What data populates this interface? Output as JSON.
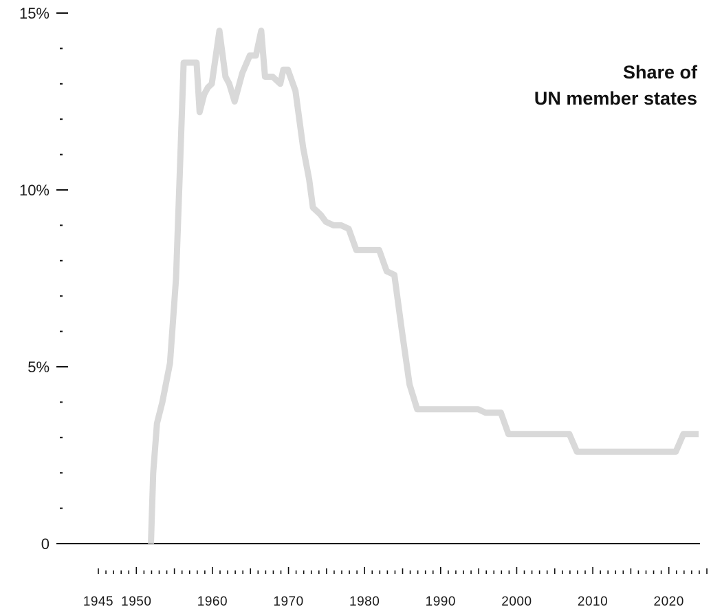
{
  "chart_data": {
    "type": "line",
    "title_lines": [
      "Share of",
      "UN member states"
    ],
    "xlabel": "",
    "ylabel": "",
    "xlim": [
      1945,
      2025
    ],
    "ylim": [
      0,
      15
    ],
    "y_ticks": [
      {
        "value": 0,
        "label": "0"
      },
      {
        "value": 5,
        "label": "5%"
      },
      {
        "value": 10,
        "label": "10%"
      },
      {
        "value": 15,
        "label": "15%"
      }
    ],
    "y_minor_step": 1,
    "x_ticks": [
      {
        "value": 1945,
        "label": "1945"
      },
      {
        "value": 1950,
        "label": "1950"
      },
      {
        "value": 1960,
        "label": "1960"
      },
      {
        "value": 1970,
        "label": "1970"
      },
      {
        "value": 1980,
        "label": "1980"
      },
      {
        "value": 1990,
        "label": "1990"
      },
      {
        "value": 2000,
        "label": "2000"
      },
      {
        "value": 2010,
        "label": "2010"
      },
      {
        "value": 2020,
        "label": "2020"
      }
    ],
    "x_minor_step": 1,
    "series": [
      {
        "color": "#d9d9d9",
        "x": [
          1953,
          1953.3,
          1953.8,
          1954.5,
          1955.5,
          1956.3,
          1956.8,
          1957.3,
          1957.8,
          1958.1,
          1959,
          1959.4,
          1960,
          1960.5,
          1961,
          1962,
          1962.8,
          1963.3,
          1964,
          1965,
          1966,
          1966.8,
          1967.5,
          1968,
          1969,
          1970,
          1970.4,
          1971,
          1972,
          1973,
          1973.8,
          1974.3,
          1974.8,
          1975.3,
          1976,
          1977,
          1978,
          1979,
          1980,
          1981,
          1982,
          1983,
          1984,
          1985,
          1986,
          1987,
          1988,
          1989,
          1990,
          1991,
          1992,
          1993,
          1994,
          1995,
          1996,
          1997,
          1998,
          1999,
          2000,
          2001,
          2002,
          2003,
          2004,
          2005,
          2006,
          2007,
          2008,
          2009,
          2010,
          2011,
          2012,
          2013,
          2014,
          2015,
          2016,
          2017,
          2018,
          2019,
          2020,
          2021,
          2022,
          2023,
          2024,
          2025
        ],
        "y": [
          0,
          2,
          3.4,
          4.0,
          5.1,
          7.5,
          10.5,
          13.6,
          13.6,
          13.6,
          13.6,
          12.2,
          12.7,
          12.9,
          13.0,
          14.5,
          13.2,
          13.0,
          12.5,
          13.3,
          13.8,
          13.8,
          14.5,
          13.2,
          13.2,
          13.0,
          13.4,
          13.4,
          12.8,
          11.2,
          10.3,
          9.5,
          9.4,
          9.3,
          9.1,
          9.0,
          9.0,
          8.9,
          8.3,
          8.3,
          8.3,
          8.3,
          7.7,
          7.6,
          6.0,
          4.5,
          3.8,
          3.8,
          3.8,
          3.8,
          3.8,
          3.8,
          3.8,
          3.8,
          3.8,
          3.7,
          3.7,
          3.7,
          3.1,
          3.1,
          3.1,
          3.1,
          3.1,
          3.1,
          3.1,
          3.1,
          3.1,
          2.6,
          2.6,
          2.6,
          2.6,
          2.6,
          2.6,
          2.6,
          2.6,
          2.6,
          2.6,
          2.6,
          2.6,
          2.6,
          2.6,
          3.1,
          3.1,
          3.1
        ]
      }
    ],
    "grid": false,
    "legend": "none"
  }
}
